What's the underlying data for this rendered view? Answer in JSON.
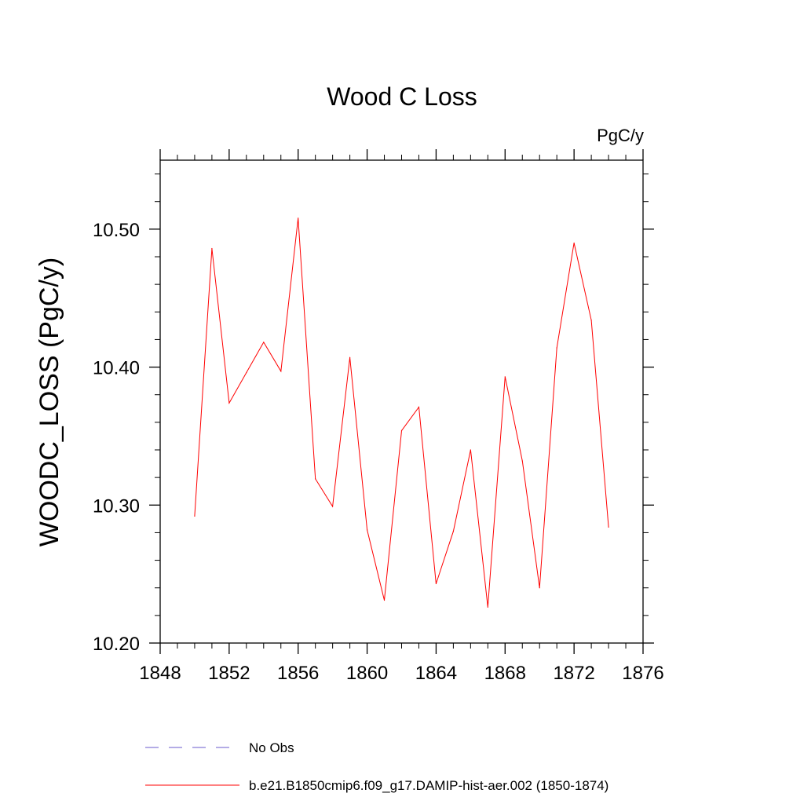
{
  "chart_data": {
    "type": "line",
    "title": "Wood C Loss",
    "units_label": "PgC/y",
    "xlabel": "",
    "ylabel": "WOODC_LOSS  (PgC/y)",
    "xlim": [
      1848,
      1876
    ],
    "ylim": [
      10.2,
      10.55
    ],
    "x_ticks": [
      1848,
      1852,
      1856,
      1860,
      1864,
      1868,
      1872,
      1876
    ],
    "x_tick_labels": [
      "1848",
      "1852",
      "1856",
      "1860",
      "1864",
      "1868",
      "1872",
      "1876"
    ],
    "y_ticks": [
      10.2,
      10.3,
      10.4,
      10.5
    ],
    "y_tick_labels": [
      "10.20",
      "10.30",
      "10.40",
      "10.50"
    ],
    "grid": false,
    "legend_placement": "bottom",
    "series": [
      {
        "name": "b.e21.B1850cmip6.f09_g17.DAMIP-hist-aer.002 (1850-1874)",
        "color": "#ff0000",
        "dash": "solid",
        "x": [
          1850,
          1851,
          1852,
          1853,
          1854,
          1855,
          1856,
          1857,
          1858,
          1859,
          1860,
          1861,
          1862,
          1863,
          1864,
          1865,
          1866,
          1867,
          1868,
          1869,
          1870,
          1871,
          1872,
          1873,
          1874
        ],
        "values": [
          10.292,
          10.486,
          10.374,
          10.396,
          10.418,
          10.397,
          10.508,
          10.319,
          10.299,
          10.407,
          10.282,
          10.231,
          10.354,
          10.371,
          10.243,
          10.281,
          10.34,
          10.226,
          10.393,
          10.332,
          10.24,
          10.414,
          10.49,
          10.434,
          10.284
        ]
      }
    ],
    "legend": [
      {
        "label": "No Obs",
        "color": "#6a5acd",
        "dash": "dashed"
      },
      {
        "label": "b.e21.B1850cmip6.f09_g17.DAMIP-hist-aer.002 (1850-1874)",
        "color": "#ff0000",
        "dash": "solid"
      }
    ]
  }
}
